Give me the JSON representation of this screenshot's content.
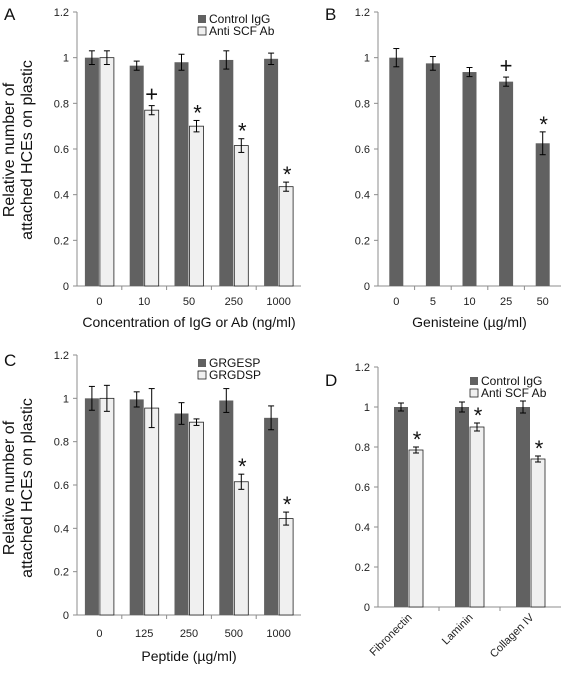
{
  "figure": {
    "ylabel_lines": [
      "Relative number of",
      "attached HCEs on plastic"
    ]
  },
  "colors": {
    "dark_bar": "#616161",
    "light_bar": "#f0f0f0",
    "axis": "#8c8c8c",
    "text": "#111111"
  },
  "chart_data": [
    {
      "panel": "A",
      "type": "bar",
      "xlabel": "Concentration  of IgG  or Ab (ng/ml)",
      "ylabel": "Relative number of attached HCEs on plastic",
      "ylim": [
        0,
        1.2
      ],
      "yticks": [
        "0",
        "0.2",
        "0.4",
        "0.6",
        "0.8",
        "1",
        "1.2"
      ],
      "categories": [
        "0",
        "10",
        "50",
        "250",
        "1000"
      ],
      "grid": false,
      "legend_position": "top-right",
      "series": [
        {
          "name": "Control IgG",
          "color": "dark",
          "values": [
            1.0,
            0.965,
            0.98,
            0.99,
            0.995
          ],
          "errors": [
            0.03,
            0.02,
            0.035,
            0.04,
            0.025
          ]
        },
        {
          "name": "Anti SCF Ab",
          "color": "light",
          "values": [
            1.0,
            0.77,
            0.7,
            0.615,
            0.435
          ],
          "errors": [
            0.03,
            0.02,
            0.025,
            0.03,
            0.02
          ]
        }
      ],
      "annotations": [
        {
          "category": 1,
          "series": 1,
          "text": "+"
        },
        {
          "category": 2,
          "series": 1,
          "text": "*"
        },
        {
          "category": 3,
          "series": 1,
          "text": "*"
        },
        {
          "category": 4,
          "series": 1,
          "text": "*"
        }
      ]
    },
    {
      "panel": "B",
      "type": "bar",
      "xlabel": "Genisteine  (µg/ml)",
      "ylim": [
        0,
        1.2
      ],
      "yticks": [
        "0",
        "0.2",
        "0.4",
        "0.6",
        "0.8",
        "1",
        "1.2"
      ],
      "categories": [
        "0",
        "5",
        "10",
        "25",
        "50"
      ],
      "grid": false,
      "series": [
        {
          "color": "dark",
          "values": [
            1.0,
            0.975,
            0.937,
            0.895,
            0.625
          ],
          "errors": [
            0.04,
            0.03,
            0.02,
            0.02,
            0.05
          ]
        }
      ],
      "annotations": [
        {
          "category": 3,
          "series": 0,
          "text": "+"
        },
        {
          "category": 4,
          "series": 0,
          "text": "*"
        }
      ]
    },
    {
      "panel": "C",
      "type": "bar",
      "xlabel": "Peptide (µg/ml)",
      "ylabel": "Relative number of attached HCEs on plastic",
      "ylim": [
        0,
        1.2
      ],
      "yticks": [
        "0",
        "0.2",
        "0.4",
        "0.6",
        "0.8",
        "1",
        "1.2"
      ],
      "categories": [
        "0",
        "125",
        "250",
        "500",
        "1000"
      ],
      "grid": false,
      "legend_position": "top-right",
      "series": [
        {
          "name": "GRGESP",
          "color": "dark",
          "values": [
            1.0,
            0.995,
            0.93,
            0.99,
            0.91
          ],
          "errors": [
            0.055,
            0.035,
            0.05,
            0.055,
            0.055
          ]
        },
        {
          "name": "GRGDSP",
          "color": "light",
          "values": [
            1.0,
            0.955,
            0.89,
            0.615,
            0.445
          ],
          "errors": [
            0.06,
            0.09,
            0.015,
            0.035,
            0.03
          ]
        }
      ],
      "annotations": [
        {
          "category": 3,
          "series": 1,
          "text": "*"
        },
        {
          "category": 4,
          "series": 1,
          "text": "*"
        }
      ]
    },
    {
      "panel": "D",
      "type": "bar",
      "xlabel": "",
      "ylim": [
        0,
        1.2
      ],
      "yticks": [
        "0",
        "0.2",
        "0.4",
        "0.6",
        "0.8",
        "1",
        "1.2"
      ],
      "categories": [
        "Fibronectin",
        "Laminin",
        "Collagen IV"
      ],
      "grid": false,
      "legend_position": "top-right",
      "series": [
        {
          "name": "Control IgG",
          "color": "dark",
          "values": [
            1.0,
            1.0,
            1.0
          ],
          "errors": [
            0.02,
            0.025,
            0.03
          ]
        },
        {
          "name": "Anti SCF Ab",
          "color": "light",
          "values": [
            0.785,
            0.9,
            0.74
          ],
          "errors": [
            0.015,
            0.02,
            0.015
          ]
        }
      ],
      "annotations": [
        {
          "category": 0,
          "series": 1,
          "text": "*"
        },
        {
          "category": 1,
          "series": 1,
          "text": "*"
        },
        {
          "category": 2,
          "series": 1,
          "text": "*"
        }
      ]
    }
  ]
}
